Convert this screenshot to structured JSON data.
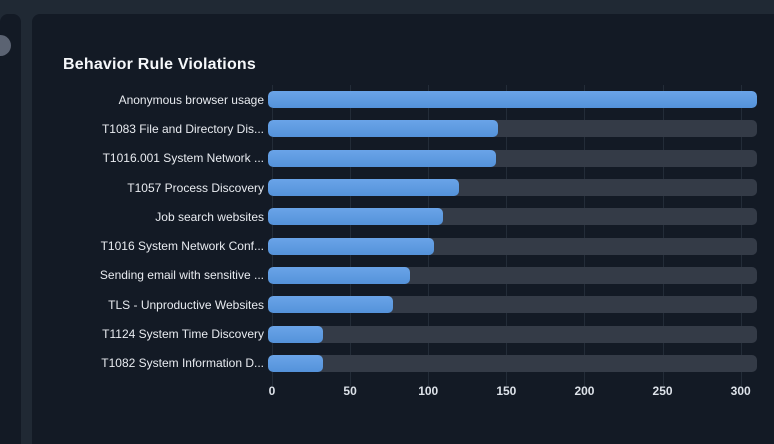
{
  "page": {
    "background_color": "#202934",
    "card_color": "#131a25"
  },
  "left_panel": {
    "circle_icon": "clipped-circle"
  },
  "card": {
    "title": "Behavior Rule Violations"
  },
  "chart_data": {
    "type": "bar",
    "orientation": "horizontal",
    "title": "Behavior Rule Violations",
    "categories": [
      "Anonymous browser usage",
      "T1083 File and Directory Dis...",
      "T1016.001 System Network ...",
      "T1057 Process Discovery",
      "Job search websites",
      "T1016 System Network Conf...",
      "Sending email with sensitive ...",
      "TLS - Unproductive Websites",
      "T1124 System Time Discovery",
      "T1082 System Information D..."
    ],
    "values": [
      313,
      147,
      146,
      122,
      112,
      106,
      91,
      80,
      35,
      35
    ],
    "xlabel": "",
    "ylabel": "",
    "xlim": [
      0,
      313
    ],
    "xticks": [
      0,
      50,
      100,
      150,
      200,
      250,
      300
    ],
    "grid": "vertical-faint",
    "legend": "none",
    "bar_color": "#5d9be2",
    "track_color": "#343b47",
    "tick_color": "#dde2e9",
    "label_color": "#e8ebf0"
  }
}
